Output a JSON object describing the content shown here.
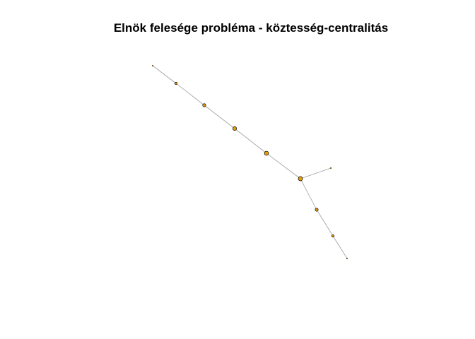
{
  "title": "Elnök felesége probléma - köztesség-centralitás",
  "colors": {
    "edge": "#a0a0a0",
    "node_fill": "#e69f00",
    "node_stroke": "#000000",
    "background": "#ffffff"
  },
  "network": {
    "nodes": [
      {
        "id": 1,
        "centrality": 0
      },
      {
        "id": 2,
        "centrality": 9
      },
      {
        "id": 3,
        "centrality": 16
      },
      {
        "id": 4,
        "centrality": 21
      },
      {
        "id": 5,
        "centrality": 24
      },
      {
        "id": 6,
        "centrality": 25
      },
      {
        "id": 7,
        "centrality": 0
      },
      {
        "id": 8,
        "centrality": 15
      },
      {
        "id": 9,
        "centrality": 8
      },
      {
        "id": 10,
        "centrality": 0
      }
    ],
    "edges": [
      [
        1,
        2
      ],
      [
        2,
        3
      ],
      [
        3,
        4
      ],
      [
        4,
        5
      ],
      [
        5,
        6
      ],
      [
        6,
        7
      ],
      [
        6,
        8
      ],
      [
        8,
        9
      ],
      [
        9,
        10
      ]
    ]
  }
}
